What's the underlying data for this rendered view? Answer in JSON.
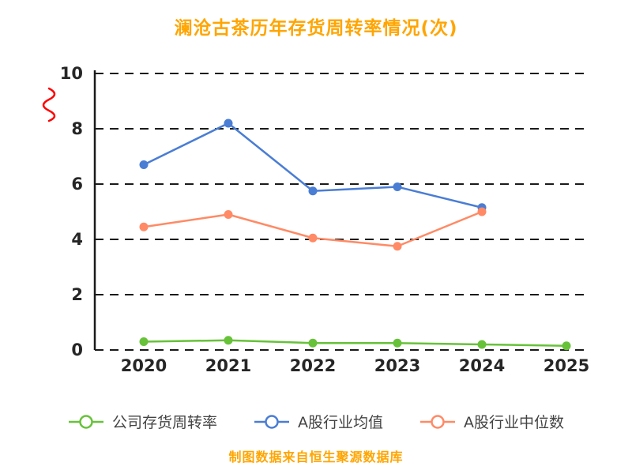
{
  "title": "澜沧古茶历年存货周转率情况(次)",
  "footer": "制图数据来自恒生聚源数据库",
  "colors": {
    "title": "#FFA500",
    "footer": "#FFA500",
    "axis": "#1a1a1a",
    "grid": "#1a1a1a",
    "axis_break": "#FF0000",
    "tick_text": "#262626"
  },
  "chart_data": {
    "type": "line",
    "title": "澜沧古茶历年存货周转率情况(次)",
    "categories": [
      "2020",
      "2021",
      "2022",
      "2023",
      "2024",
      "2025"
    ],
    "series": [
      {
        "name": "公司存货周转率",
        "color": "#67C23A",
        "values": [
          0.3,
          0.35,
          0.25,
          0.25,
          0.2,
          0.15
        ]
      },
      {
        "name": "A股行业均值",
        "color": "#4A7DD4",
        "values": [
          6.7,
          8.2,
          5.75,
          5.9,
          5.15,
          null
        ]
      },
      {
        "name": "A股行业中位数",
        "color": "#FF8A65",
        "values": [
          4.45,
          4.9,
          4.05,
          3.75,
          5.0,
          null
        ]
      }
    ],
    "xlabel": "",
    "ylabel": "",
    "ylim": [
      0,
      10
    ],
    "yticks": [
      0,
      2,
      4,
      6,
      8,
      10
    ],
    "grid": "horizontal-dashed",
    "legend_position": "bottom"
  }
}
